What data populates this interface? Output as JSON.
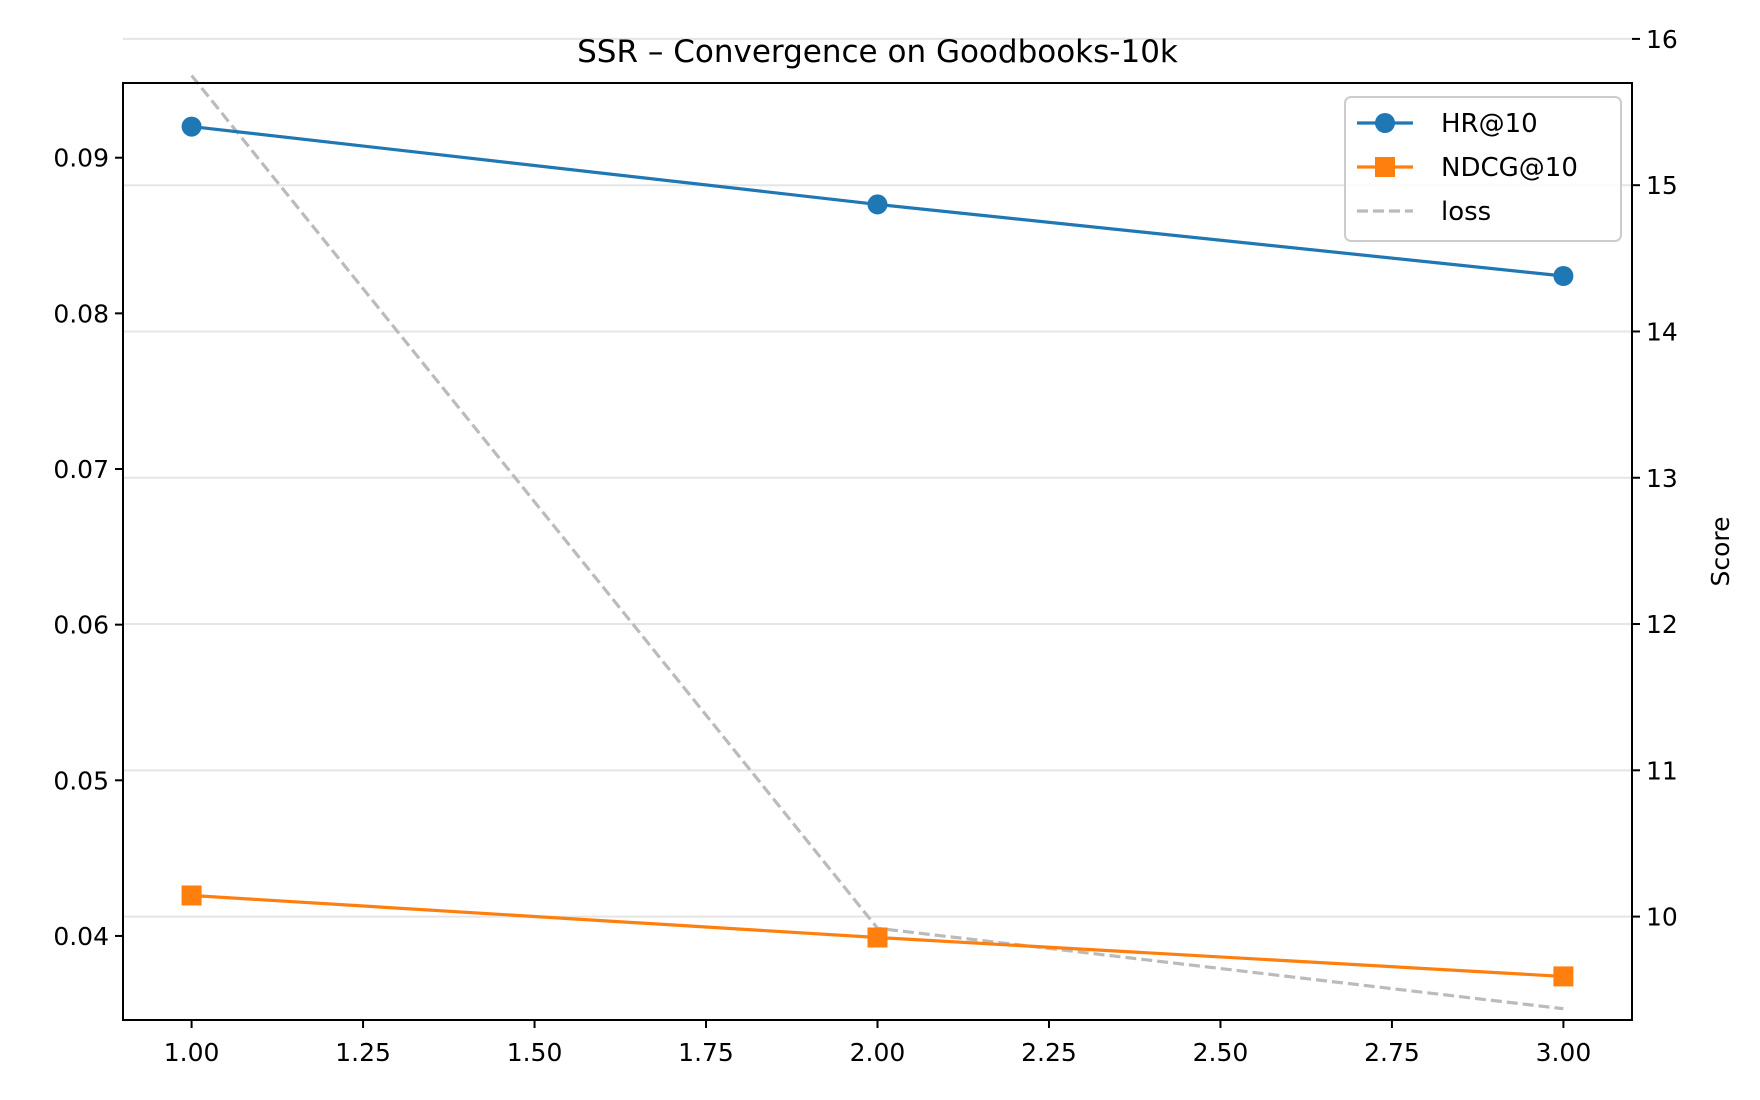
{
  "chart_data": {
    "type": "line",
    "title": "SSR – Convergence on Goodbooks-10k",
    "xlabel": "",
    "ylabel": "",
    "y2label": "Score",
    "x": [
      1.0,
      2.0,
      3.0
    ],
    "xlim": [
      0.9,
      3.1
    ],
    "ylim": [
      0.0346,
      0.0948
    ],
    "y2lim": [
      9.2931,
      15.6986
    ],
    "x_ticks": [
      "1.00",
      "1.25",
      "1.50",
      "1.75",
      "2.00",
      "2.25",
      "2.50",
      "2.75",
      "3.00"
    ],
    "x_tick_values": [
      1.0,
      1.25,
      1.5,
      1.75,
      2.0,
      2.25,
      2.5,
      2.75,
      3.0
    ],
    "y_ticks": [
      "0.04",
      "0.05",
      "0.06",
      "0.07",
      "0.08",
      "0.09"
    ],
    "y_tick_values": [
      0.04,
      0.05,
      0.06,
      0.07,
      0.08,
      0.09
    ],
    "y2_ticks": [
      "10",
      "11",
      "12",
      "13",
      "14",
      "15",
      "16"
    ],
    "y2_tick_values": [
      10,
      11,
      12,
      13,
      14,
      15,
      16
    ],
    "grid": "horizontal",
    "legend_position": "top-right",
    "series": [
      {
        "name": "HR@10",
        "axis": "left",
        "values": [
          0.092,
          0.087,
          0.0824
        ],
        "color": "#1f77b4",
        "marker": "circle",
        "style": "solid"
      },
      {
        "name": "NDCG@10",
        "axis": "left",
        "values": [
          0.0426,
          0.0399,
          0.0374
        ],
        "color": "#ff7f0e",
        "marker": "square",
        "style": "solid"
      },
      {
        "name": "loss",
        "axis": "right",
        "values": [
          15.75,
          9.92,
          9.37
        ],
        "color": "#bbbbbb",
        "marker": "none",
        "style": "dashed"
      }
    ]
  }
}
